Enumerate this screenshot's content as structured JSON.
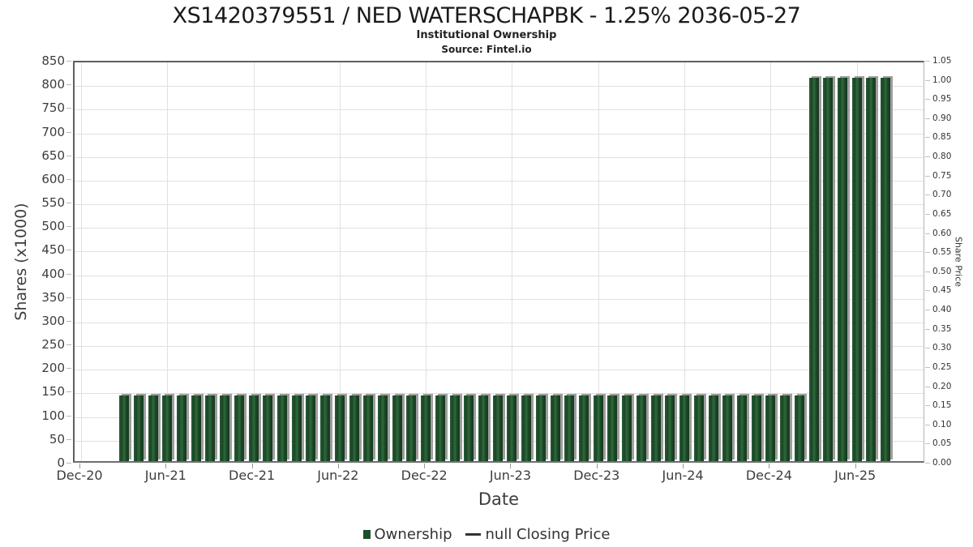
{
  "header": {
    "title": "XS1420379551 / NED WATERSCHAPBK - 1.25% 2036-05-27",
    "subtitle": "Institutional Ownership",
    "source": "Source: Fintel.io"
  },
  "chart_data": {
    "type": "bar",
    "title": "XS1420379551 / NED WATERSCHAPBK - 1.25% 2036-05-27",
    "subtitle": "Institutional Ownership",
    "source": "Source: Fintel.io",
    "xlabel": "Date",
    "ylabel": "Shares (x1000)",
    "y2label": "Share Price",
    "ylim": [
      0,
      850
    ],
    "ytick_step": 50,
    "y2lim": [
      0,
      1.05
    ],
    "y2tick_step": 0.05,
    "grid": true,
    "x_tick_labels": [
      "Dec-20",
      "Jun-21",
      "Dec-21",
      "Jun-22",
      "Dec-22",
      "Jun-23",
      "Dec-23",
      "Jun-24",
      "Dec-24",
      "Jun-25"
    ],
    "categories": [
      "Mar-21",
      "Apr-21",
      "May-21",
      "Jun-21",
      "Jul-21",
      "Aug-21",
      "Sep-21",
      "Oct-21",
      "Nov-21",
      "Dec-21",
      "Jan-22",
      "Feb-22",
      "Mar-22",
      "Apr-22",
      "May-22",
      "Jun-22",
      "Jul-22",
      "Aug-22",
      "Sep-22",
      "Oct-22",
      "Nov-22",
      "Dec-22",
      "Jan-23",
      "Feb-23",
      "Mar-23",
      "Apr-23",
      "May-23",
      "Jun-23",
      "Jul-23",
      "Aug-23",
      "Sep-23",
      "Oct-23",
      "Nov-23",
      "Dec-23",
      "Jan-24",
      "Feb-24",
      "Mar-24",
      "Apr-24",
      "May-24",
      "Jun-24",
      "Jul-24",
      "Aug-24",
      "Sep-24",
      "Oct-24",
      "Nov-24",
      "Dec-24",
      "Jan-25",
      "Feb-25",
      "Mar-25",
      "Apr-25",
      "May-25",
      "Jun-25",
      "Jul-25",
      "Aug-25"
    ],
    "series": [
      {
        "name": "Ownership",
        "values": [
          139,
          139,
          139,
          139,
          139,
          139,
          139,
          139,
          139,
          139,
          139,
          139,
          139,
          139,
          139,
          139,
          139,
          139,
          139,
          139,
          139,
          139,
          139,
          139,
          139,
          139,
          139,
          139,
          139,
          139,
          139,
          139,
          139,
          139,
          139,
          139,
          139,
          139,
          139,
          139,
          139,
          139,
          139,
          139,
          139,
          139,
          139,
          139,
          810,
          810,
          810,
          810,
          810,
          810
        ]
      }
    ],
    "colors": {
      "bar": "#1d4f2b",
      "bar_gradient": [
        "#2a5f37",
        "#1b4425",
        "#2f6b3d",
        "#1b4425",
        "#153a1d"
      ],
      "bar_shadow": "#9e9e9e",
      "grid": "#e0e0e0",
      "legend_line": "#333333"
    },
    "legend": {
      "position": "bottom",
      "items": [
        {
          "type": "bar",
          "label": "Ownership",
          "color": "#1d4f2b"
        },
        {
          "type": "line",
          "label": "null Closing Price",
          "color": "#333333"
        }
      ]
    }
  }
}
